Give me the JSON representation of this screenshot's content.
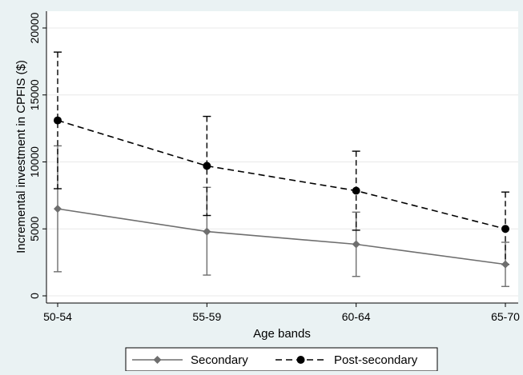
{
  "chart_data": {
    "type": "line",
    "title": "",
    "xlabel": "Age bands",
    "ylabel": "Incremental investment in CPFIS ($)",
    "categories": [
      "50-54",
      "55-59",
      "60-64",
      "65-70"
    ],
    "ylim": [
      0,
      20000
    ],
    "yticks": [
      0,
      5000,
      10000,
      15000,
      20000
    ],
    "grid": true,
    "legend_position": "bottom",
    "series": [
      {
        "name": "Secondary",
        "values": [
          6500,
          4800,
          3850,
          2350
        ],
        "ci_low": [
          1800,
          1550,
          1450,
          700
        ],
        "ci_high": [
          11200,
          8100,
          6250,
          4000
        ],
        "color": "#6e6e6e",
        "line_style": "solid",
        "marker": "diamond"
      },
      {
        "name": "Post-secondary",
        "values": [
          13100,
          9700,
          7850,
          5000
        ],
        "ci_low": [
          8000,
          6000,
          4900,
          2350
        ],
        "ci_high": [
          18200,
          13400,
          10800,
          7750
        ],
        "color": "#000000",
        "line_style": "dashed",
        "marker": "circle"
      }
    ]
  }
}
